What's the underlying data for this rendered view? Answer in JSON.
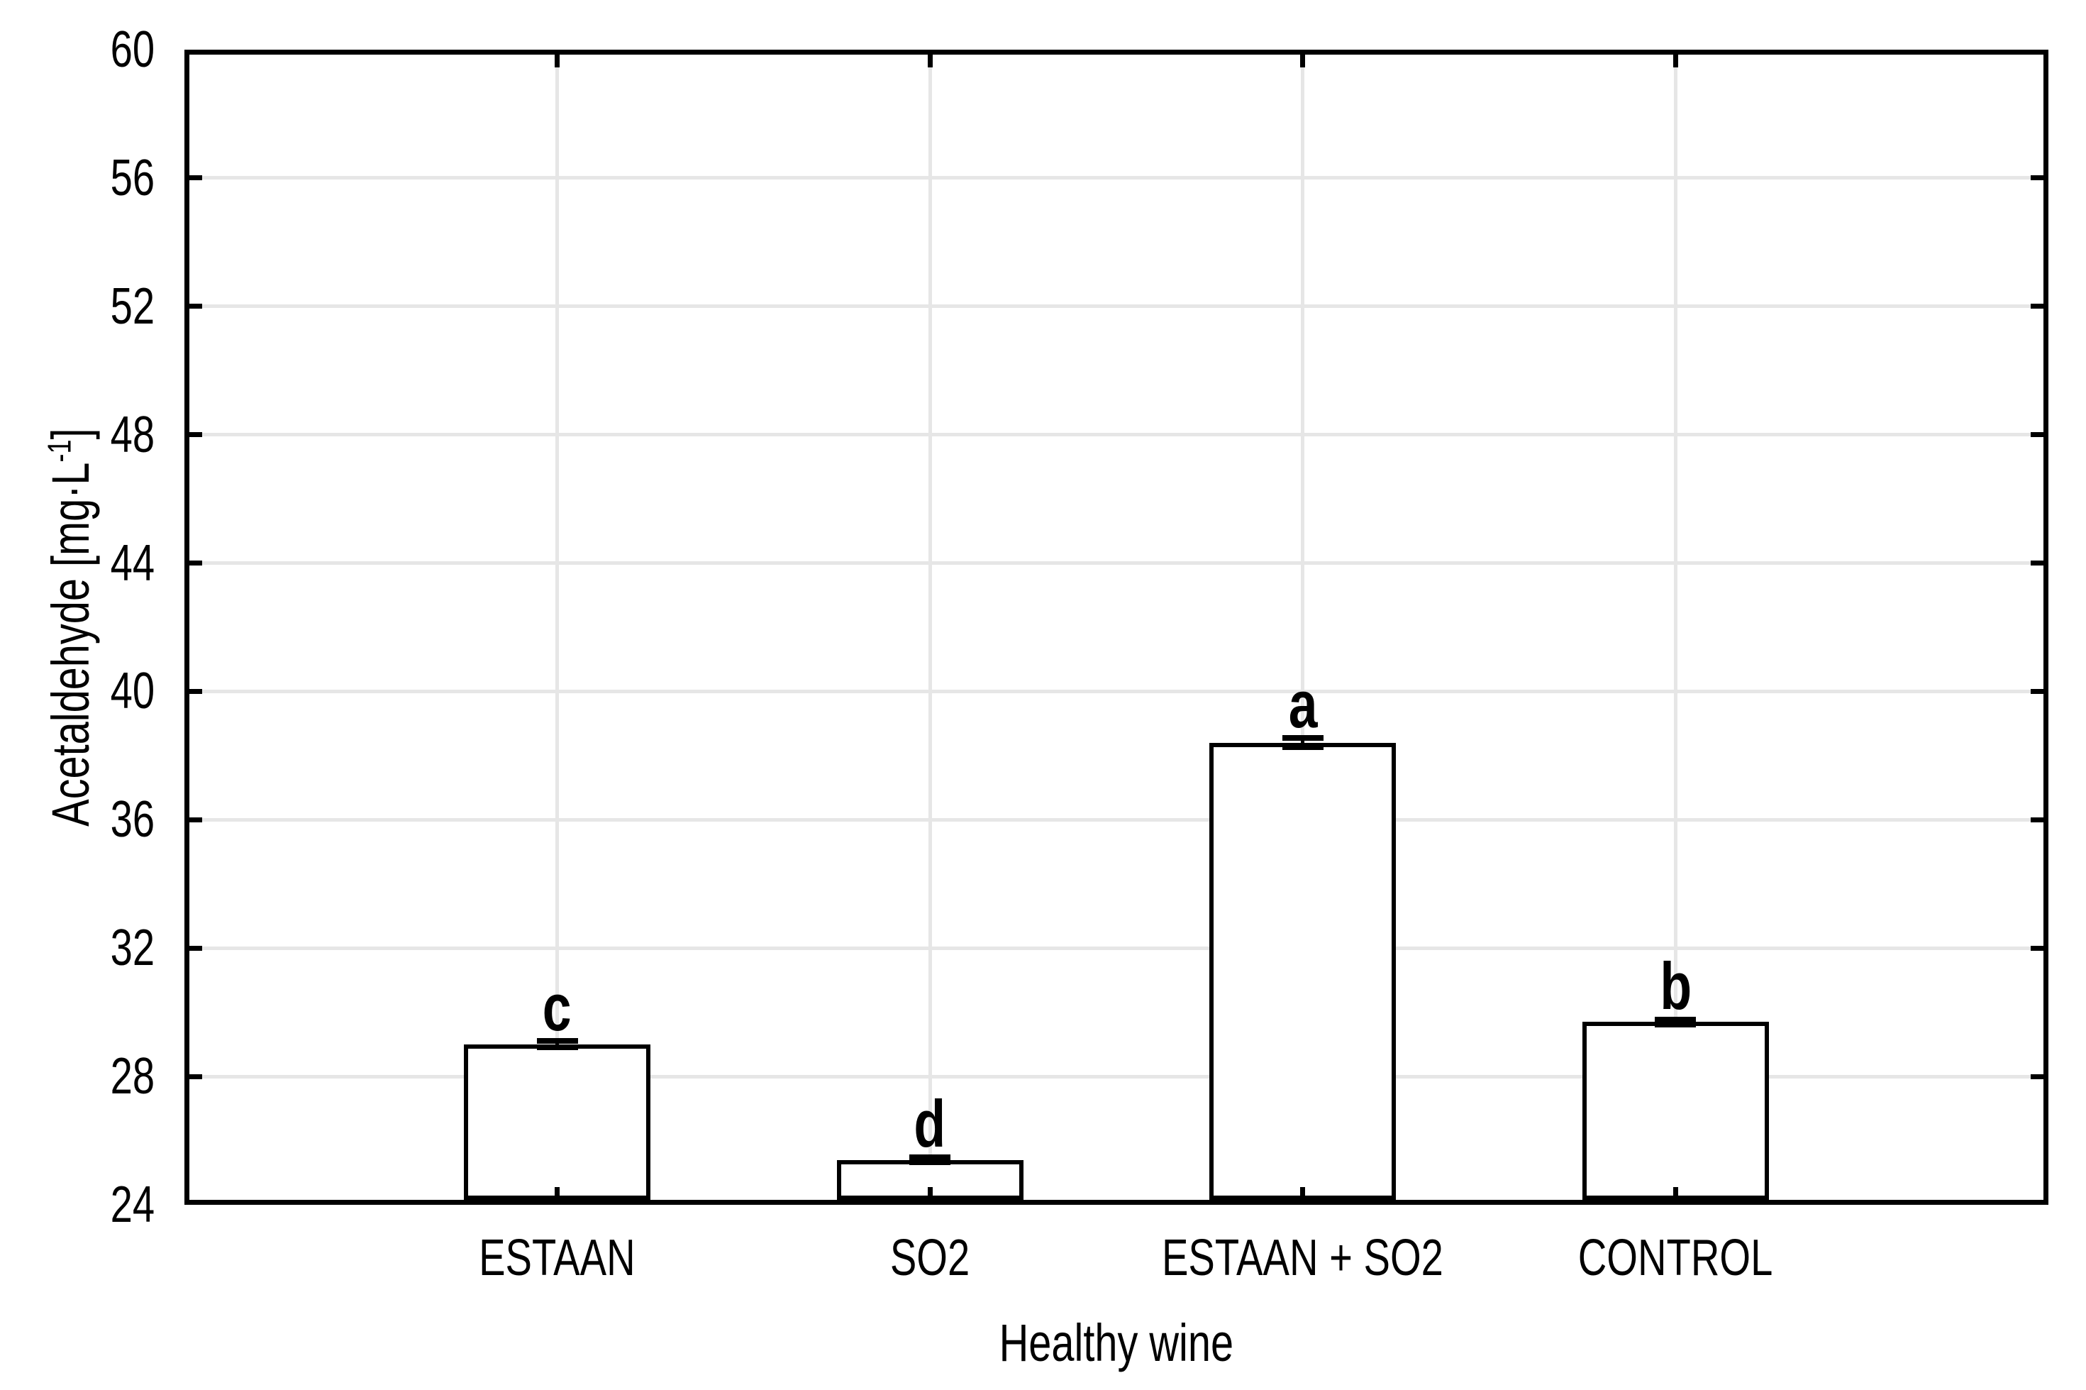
{
  "chart_data": {
    "type": "bar",
    "title": "",
    "categories": [
      "ESTAAN",
      "SO2",
      "ESTAAN + SO2",
      "CONTROL"
    ],
    "values": [
      29.0,
      25.4,
      38.4,
      29.7
    ],
    "error_bars": [
      0.1,
      0.08,
      0.14,
      0.08
    ],
    "significance_letters": [
      "c",
      "d",
      "a",
      "b"
    ],
    "xlabel": "Healthy wine",
    "ylabel": "Acetaldehyde [mg·L⁻¹]",
    "ylabel_parts": {
      "prefix": "Acetaldehyde [mg·L",
      "superscript": "-1",
      "suffix": "]"
    },
    "ylim": [
      24,
      60
    ],
    "ytick_step": 4,
    "yticks": [
      24,
      28,
      32,
      36,
      40,
      44,
      48,
      52,
      56,
      60
    ],
    "grid": true,
    "legend": null,
    "colors": {
      "bar_fill": "#ffffff",
      "bar_border": "#000000",
      "gridline": "#e6e6e6",
      "axis": "#000000",
      "text": "#000000",
      "background": "#ffffff"
    }
  }
}
